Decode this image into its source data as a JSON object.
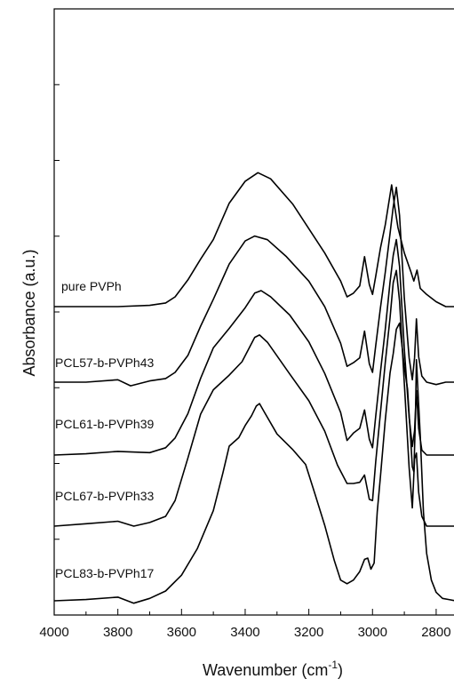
{
  "chart_data": {
    "type": "line",
    "title": "",
    "xlabel": "Wavenumber (cm",
    "xlabel_sup": "-1",
    "xlabel_end": ")",
    "ylabel": "Absorbance (a.u.)",
    "xlim": [
      4000,
      2730
    ],
    "x_reversed": true,
    "y_ticks_labeled": false,
    "xticks": [
      "4000",
      "3800",
      "3600",
      "3400",
      "3200",
      "3000",
      "2800"
    ],
    "series": [
      {
        "name": "pure PVPh",
        "x": [
          4000,
          3800,
          3700,
          3650,
          3620,
          3580,
          3540,
          3500,
          3450,
          3400,
          3360,
          3320,
          3250,
          3200,
          3150,
          3100,
          3080,
          3060,
          3040,
          3025,
          3010,
          3000,
          2990,
          2975,
          2960,
          2940,
          2930,
          2920,
          2900,
          2880,
          2870,
          2860,
          2850,
          2830,
          2800,
          2770,
          2740,
          2730
        ],
        "y": [
          0.0,
          0.0,
          0.01,
          0.03,
          0.08,
          0.22,
          0.39,
          0.55,
          0.85,
          1.03,
          1.1,
          1.05,
          0.84,
          0.64,
          0.44,
          0.21,
          0.08,
          0.11,
          0.17,
          0.41,
          0.18,
          0.1,
          0.25,
          0.48,
          0.67,
          1.0,
          0.82,
          0.65,
          0.44,
          0.29,
          0.21,
          0.3,
          0.15,
          0.1,
          0.04,
          0.0,
          0.0,
          0.0
        ]
      },
      {
        "name": "PCL57-b-PVPh43",
        "x": [
          4000,
          3900,
          3800,
          3760,
          3700,
          3650,
          3620,
          3580,
          3540,
          3500,
          3450,
          3400,
          3370,
          3330,
          3270,
          3200,
          3150,
          3100,
          3080,
          3060,
          3040,
          3025,
          3010,
          3000,
          2990,
          2975,
          2960,
          2945,
          2935,
          2925,
          2915,
          2900,
          2885,
          2875,
          2868,
          2862,
          2855,
          2845,
          2830,
          2800,
          2770,
          2740,
          2730
        ],
        "y": [
          0.0,
          0.0,
          0.02,
          -0.03,
          0.01,
          0.03,
          0.08,
          0.22,
          0.46,
          0.68,
          0.97,
          1.16,
          1.2,
          1.17,
          1.03,
          0.83,
          0.62,
          0.32,
          0.13,
          0.16,
          0.2,
          0.42,
          0.15,
          0.08,
          0.3,
          0.61,
          0.9,
          1.22,
          1.44,
          1.6,
          1.37,
          0.69,
          0.2,
          0.02,
          0.2,
          0.52,
          0.21,
          0.05,
          0.0,
          -0.02,
          0.0,
          0.0,
          0.0
        ]
      },
      {
        "name": "PCL61-b-PVPh39",
        "x": [
          4000,
          3900,
          3800,
          3700,
          3650,
          3620,
          3580,
          3540,
          3500,
          3450,
          3400,
          3370,
          3350,
          3320,
          3260,
          3200,
          3150,
          3100,
          3080,
          3060,
          3040,
          3025,
          3010,
          3000,
          2990,
          2975,
          2960,
          2945,
          2935,
          2925,
          2915,
          2900,
          2885,
          2875,
          2868,
          2862,
          2855,
          2845,
          2830,
          2800,
          2770,
          2740,
          2730
        ],
        "y": [
          0.0,
          0.01,
          0.03,
          0.02,
          0.06,
          0.14,
          0.34,
          0.63,
          0.88,
          1.04,
          1.21,
          1.33,
          1.35,
          1.3,
          1.15,
          0.93,
          0.67,
          0.35,
          0.12,
          0.18,
          0.22,
          0.37,
          0.13,
          0.06,
          0.32,
          0.68,
          1.03,
          1.42,
          1.64,
          1.77,
          1.55,
          0.87,
          0.31,
          0.07,
          0.2,
          0.53,
          0.22,
          0.04,
          0.0,
          0.0,
          0.0,
          0.0,
          0.0
        ]
      },
      {
        "name": "PCL67-b-PVPh33",
        "x": [
          4000,
          3900,
          3800,
          3750,
          3700,
          3650,
          3620,
          3580,
          3540,
          3500,
          3450,
          3410,
          3370,
          3355,
          3330,
          3260,
          3200,
          3150,
          3110,
          3080,
          3060,
          3040,
          3025,
          3010,
          3000,
          2990,
          2975,
          2960,
          2945,
          2935,
          2925,
          2915,
          2900,
          2885,
          2875,
          2868,
          2862,
          2855,
          2845,
          2830,
          2800,
          2770,
          2740,
          2730
        ],
        "y": [
          0.0,
          0.02,
          0.04,
          0.0,
          0.03,
          0.08,
          0.21,
          0.56,
          0.92,
          1.12,
          1.24,
          1.35,
          1.55,
          1.57,
          1.51,
          1.25,
          1.03,
          0.78,
          0.5,
          0.35,
          0.35,
          0.36,
          0.42,
          0.22,
          0.21,
          0.53,
          0.93,
          1.34,
          1.71,
          2.0,
          2.1,
          1.85,
          1.17,
          0.48,
          0.15,
          0.55,
          0.6,
          0.28,
          0.08,
          0.0,
          0.0,
          0.0,
          0.0,
          0.0
        ]
      },
      {
        "name": "PCL83-b-PVPh17",
        "x": [
          4000,
          3900,
          3800,
          3750,
          3700,
          3650,
          3600,
          3550,
          3500,
          3470,
          3450,
          3420,
          3400,
          3380,
          3365,
          3355,
          3340,
          3300,
          3250,
          3210,
          3180,
          3150,
          3120,
          3100,
          3080,
          3060,
          3040,
          3025,
          3015,
          3005,
          2995,
          2985,
          2975,
          2960,
          2945,
          2935,
          2925,
          2915,
          2900,
          2890,
          2880,
          2875,
          2870,
          2865,
          2862,
          2858,
          2850,
          2840,
          2830,
          2815,
          2800,
          2780,
          2760,
          2740,
          2730
        ],
        "y": [
          0.0,
          0.01,
          0.03,
          -0.02,
          0.02,
          0.08,
          0.21,
          0.43,
          0.74,
          1.05,
          1.27,
          1.34,
          1.44,
          1.52,
          1.6,
          1.62,
          1.55,
          1.37,
          1.24,
          1.12,
          0.87,
          0.62,
          0.33,
          0.17,
          0.14,
          0.17,
          0.24,
          0.34,
          0.35,
          0.26,
          0.31,
          0.73,
          1.02,
          1.48,
          1.87,
          2.03,
          2.23,
          2.28,
          1.92,
          1.74,
          1.32,
          1.1,
          1.06,
          1.5,
          1.98,
          1.77,
          1.36,
          0.73,
          0.39,
          0.17,
          0.07,
          0.02,
          0.01,
          0.0,
          0.0
        ]
      }
    ]
  }
}
